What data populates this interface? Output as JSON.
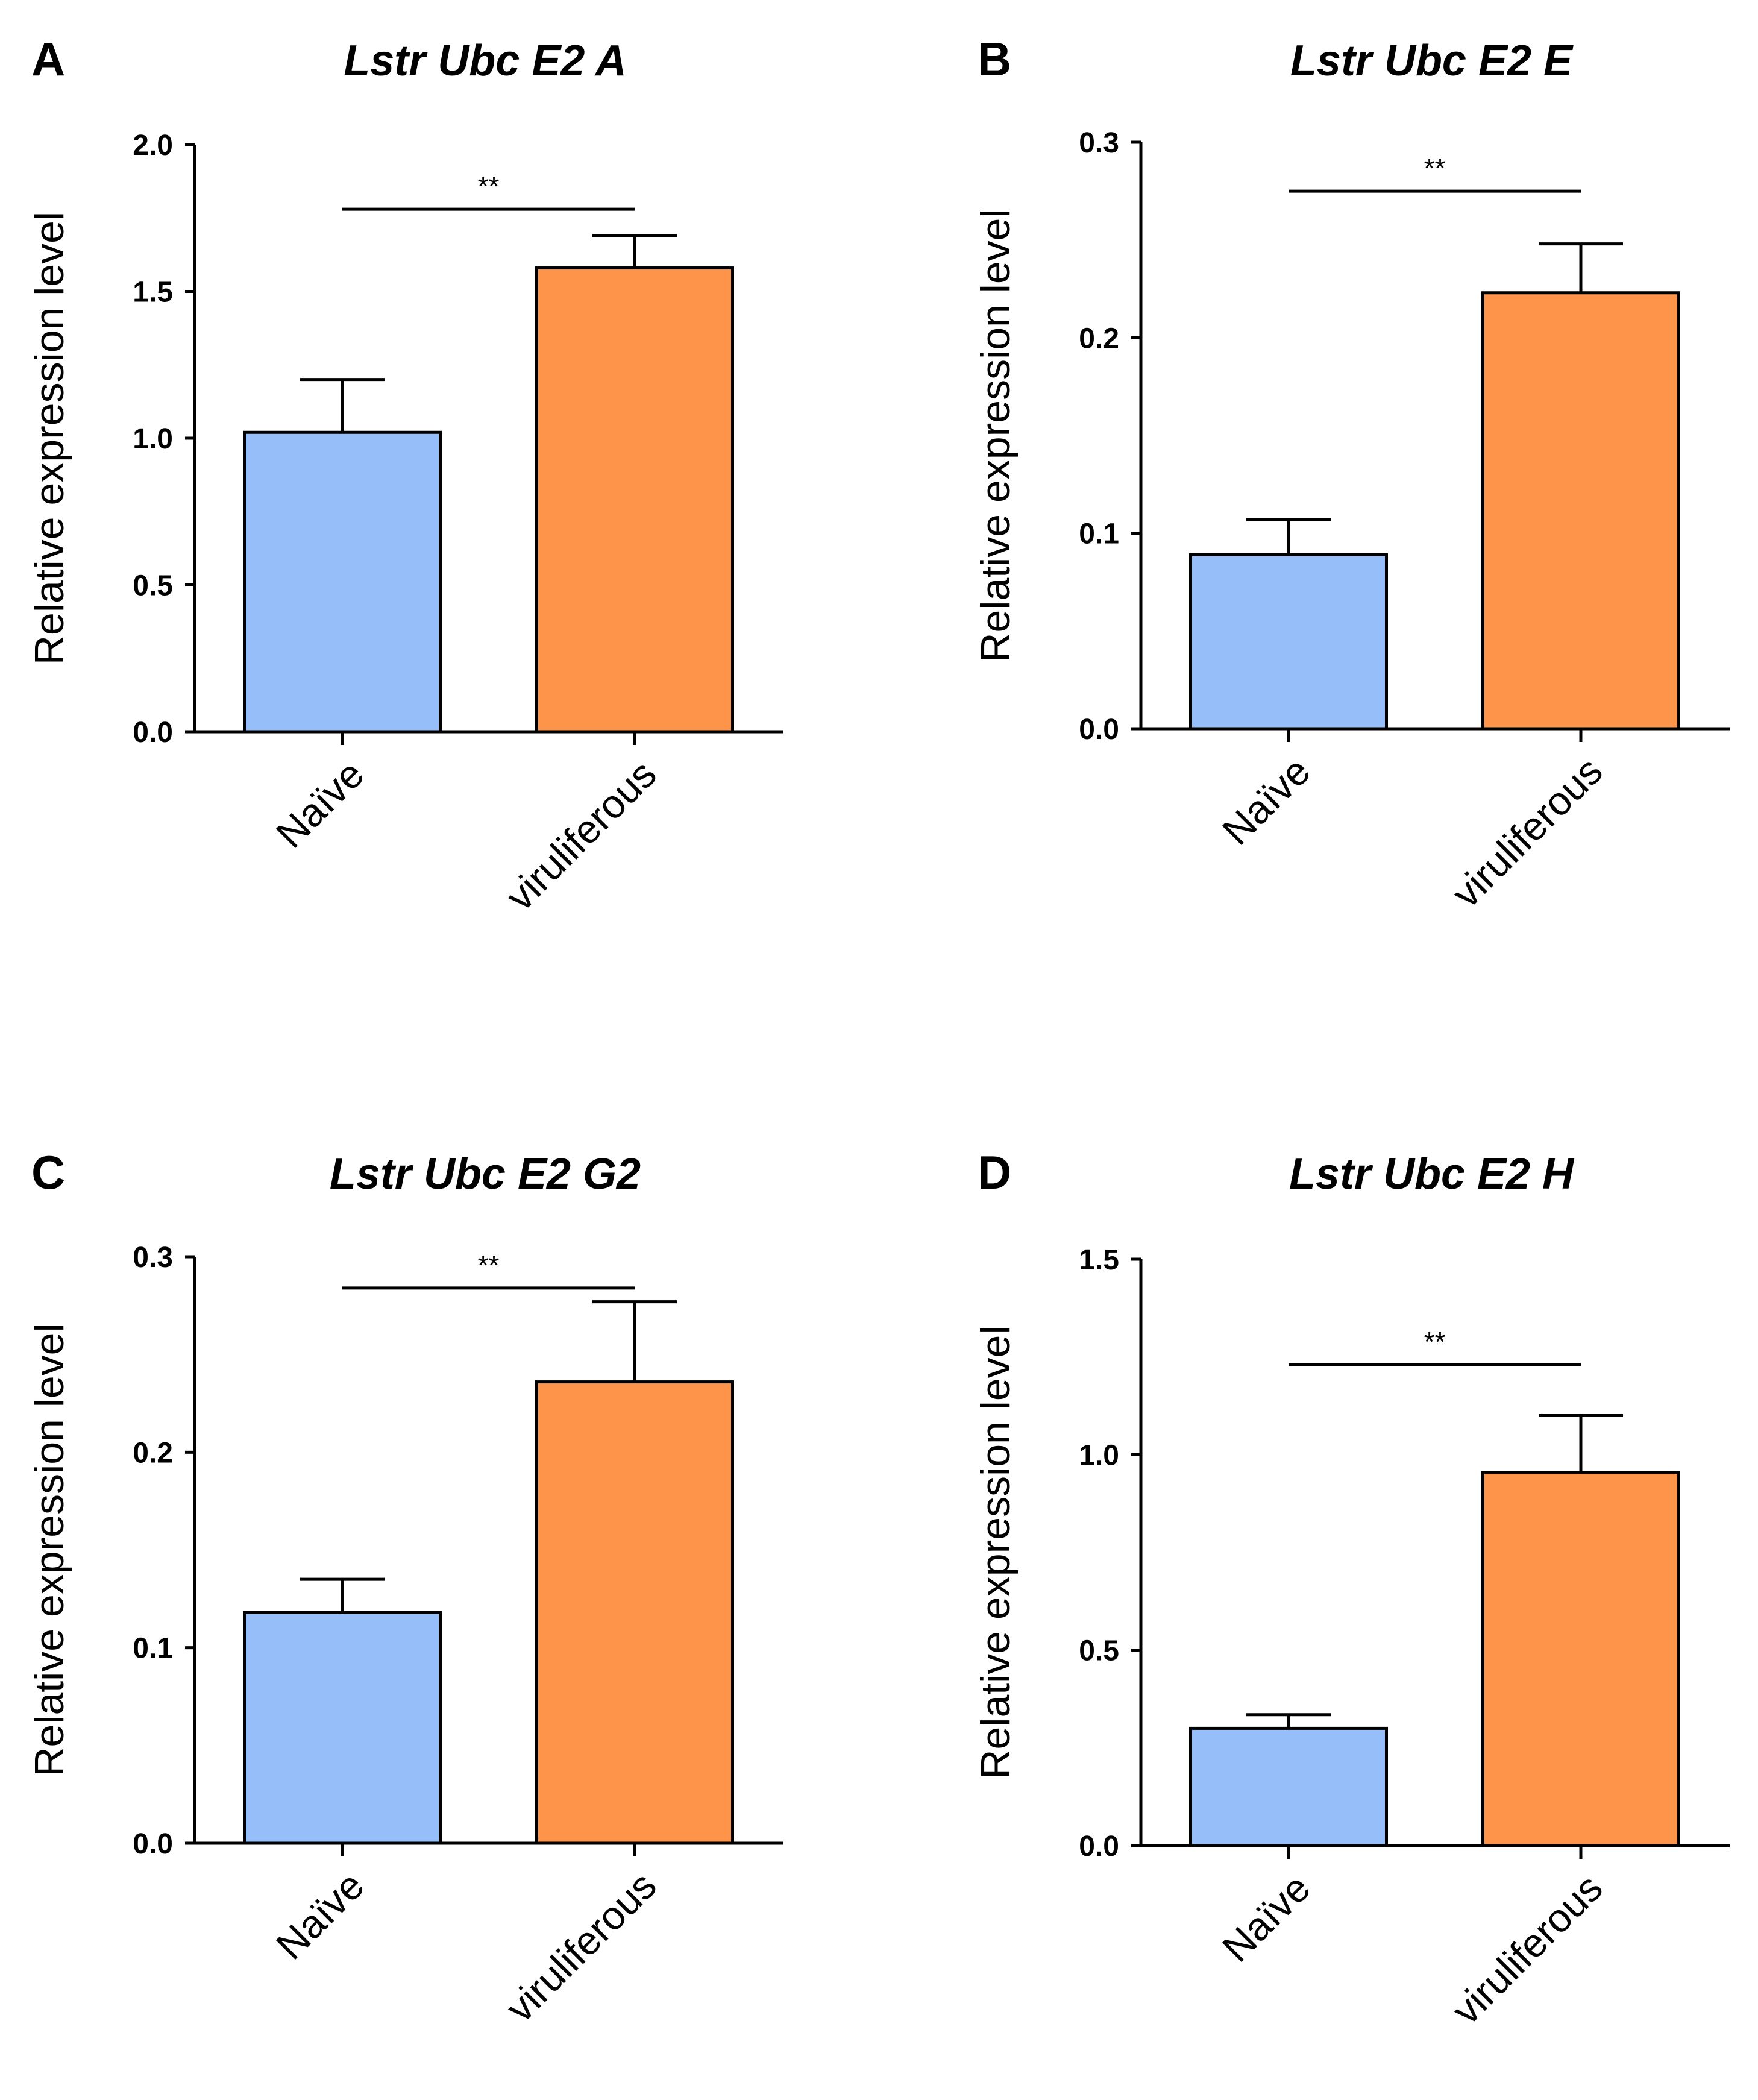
{
  "chart_data": [
    {
      "type": "bar",
      "panel": "A",
      "title": "Lstr Ubc E2 A",
      "ylabel": "Relative expression level",
      "xlabel": "",
      "categories": [
        "Naïve",
        "viruliferous"
      ],
      "values": [
        1.02,
        1.58
      ],
      "errors": [
        0.18,
        0.11
      ],
      "colors": [
        "#96bffa",
        "#fd944a"
      ],
      "ylim": [
        0,
        2.0
      ],
      "yticks": [
        0.0,
        0.5,
        1.0,
        1.5,
        2.0
      ],
      "ytick_labels": [
        "0.0",
        "0.5",
        "1.0",
        "1.5",
        "2.0"
      ],
      "significance": {
        "label": "**",
        "y": 1.78
      }
    },
    {
      "type": "bar",
      "panel": "B",
      "title": "Lstr Ubc E2 E",
      "ylabel": "Relative expression level",
      "xlabel": "",
      "categories": [
        "Naïve",
        "viruliferous"
      ],
      "values": [
        0.089,
        0.223
      ],
      "errors": [
        0.018,
        0.025
      ],
      "colors": [
        "#96bffa",
        "#fd944a"
      ],
      "ylim": [
        0,
        0.3
      ],
      "yticks": [
        0.0,
        0.1,
        0.2,
        0.3
      ],
      "ytick_labels": [
        "0.0",
        "0.1",
        "0.2",
        "0.3"
      ],
      "significance": {
        "label": "**",
        "y": 0.275
      }
    },
    {
      "type": "bar",
      "panel": "C",
      "title": "Lstr Ubc E2 G2",
      "ylabel": "Relative expression level",
      "xlabel": "",
      "categories": [
        "Naïve",
        "viruliferous"
      ],
      "values": [
        0.118,
        0.236
      ],
      "errors": [
        0.017,
        0.041
      ],
      "colors": [
        "#96bffa",
        "#fd944a"
      ],
      "ylim": [
        0,
        0.3
      ],
      "yticks": [
        0.0,
        0.1,
        0.2,
        0.3
      ],
      "ytick_labels": [
        "0.0",
        "0.1",
        "0.2",
        "0.3"
      ],
      "significance": {
        "label": "**",
        "y": 0.284
      }
    },
    {
      "type": "bar",
      "panel": "D",
      "title": "Lstr Ubc E2 H",
      "ylabel": "Relative expression level",
      "xlabel": "",
      "categories": [
        "Naïve",
        "viruliferous"
      ],
      "values": [
        0.3,
        0.955
      ],
      "errors": [
        0.035,
        0.145
      ],
      "colors": [
        "#96bffa",
        "#fd944a"
      ],
      "ylim": [
        0,
        1.5
      ],
      "yticks": [
        0.0,
        0.5,
        1.0,
        1.5
      ],
      "ytick_labels": [
        "0.0",
        "0.5",
        "1.0",
        "1.5"
      ],
      "significance": {
        "label": "**",
        "y": 1.23
      }
    }
  ]
}
